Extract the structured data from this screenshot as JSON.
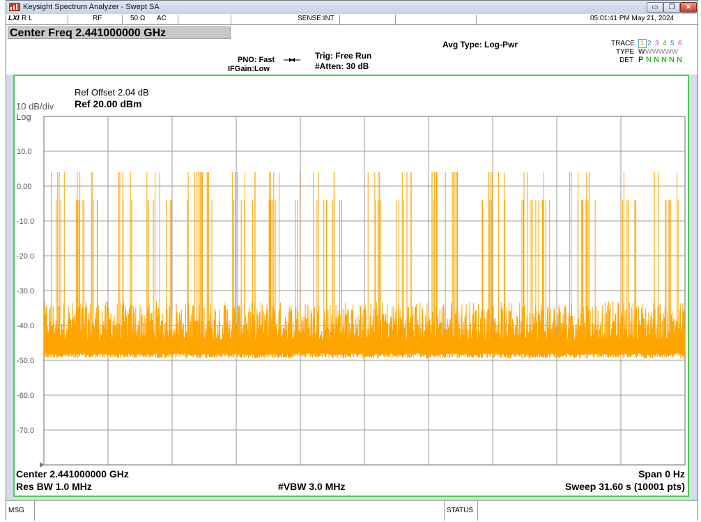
{
  "window": {
    "title": "Keysight Spectrum Analyzer - Swept SA",
    "min_glyph": "▭",
    "max_glyph": "❐",
    "close_glyph": "✕"
  },
  "status_line": {
    "logo": "LXI",
    "rl": "R L",
    "rf": "RF",
    "impedance": "50 Ω",
    "coupling": "AC",
    "sense": "SENSE:INT",
    "datetime": "05:01:41 PM May 21, 2024"
  },
  "settings": {
    "center_freq": "Center Freq 2.441000000 GHz",
    "pno": "PNO: Fast",
    "ifgain": "IFGain:Low",
    "trig": "Trig: Free Run",
    "atten": "#Atten: 30 dB",
    "avg_type": "Avg Type: Log-Pwr",
    "trace_label": "TRACE",
    "trace_nums": [
      "1",
      "2",
      "3",
      "4",
      "5",
      "6"
    ],
    "type_label": "TYPE",
    "type_value": "W",
    "type_wave": "WWWWW",
    "det_label": "DET",
    "det_first": "P",
    "det_rest": "N N N N N"
  },
  "display": {
    "ref_offset": "Ref Offset 2.04 dB",
    "scale": "10 dB/div",
    "ref_level": "Ref 20.00 dBm",
    "log": "Log",
    "center": "Center 2.441000000 GHz",
    "span": "Span 0 Hz",
    "res_bw": "Res BW 1.0 MHz",
    "vbw": "#VBW 3.0 MHz",
    "sweep": "Sweep  31.60 s (10001 pts)"
  },
  "bottom_bar": {
    "msg": "MSG",
    "status": "STATUS"
  },
  "colors": {
    "trace": "#ffa500",
    "graticule": "#9a9a9a",
    "frame": "#43d443",
    "grid_bg": "#ffffff"
  },
  "chart_data": {
    "type": "line",
    "description_free": true,
    "ylim": [
      -80,
      20
    ],
    "y_ticks": [
      "10.0",
      "0.00",
      "-10.0",
      "-20.0",
      "-30.0",
      "-40.0",
      "-50.0",
      "-60.0",
      "-70.0"
    ],
    "y_tick_values": [
      10,
      0,
      -10,
      -20,
      -30,
      -40,
      -50,
      -60,
      -70
    ],
    "noise_floor_dbm": -48,
    "noise_top_dbm": -35,
    "burst_levels_dbm": [
      -4,
      4
    ],
    "trace_color": "#ffa500"
  }
}
